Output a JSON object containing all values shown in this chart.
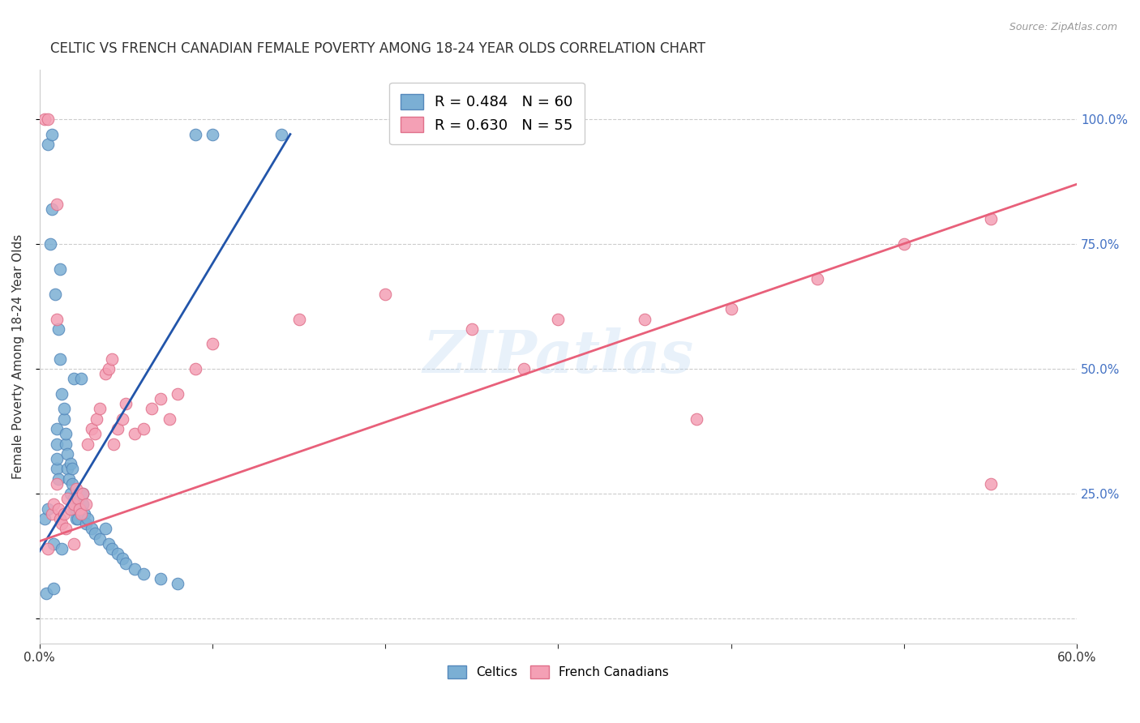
{
  "title": "CELTIC VS FRENCH CANADIAN FEMALE POVERTY AMONG 18-24 YEAR OLDS CORRELATION CHART",
  "source": "Source: ZipAtlas.com",
  "ylabel": "Female Poverty Among 18-24 Year Olds",
  "xlim": [
    0.0,
    0.6
  ],
  "ylim": [
    -0.05,
    1.1
  ],
  "xticks": [
    0.0,
    0.1,
    0.2,
    0.3,
    0.4,
    0.5,
    0.6
  ],
  "xtick_labels": [
    "0.0%",
    "",
    "",
    "",
    "",
    "",
    "60.0%"
  ],
  "yticks": [
    0.0,
    0.25,
    0.5,
    0.75,
    1.0
  ],
  "ytick_labels": [
    "",
    "25.0%",
    "50.0%",
    "75.0%",
    "100.0%"
  ],
  "legend1_r": "0.484",
  "legend1_n": "60",
  "legend2_r": "0.630",
  "legend2_n": "55",
  "celtics_color": "#7bafd4",
  "french_color": "#f4a0b5",
  "celtics_edge": "#5588bb",
  "french_edge": "#e0708a",
  "line_blue": "#2255aa",
  "line_pink": "#e8607a",
  "celtics_x": [
    0.003,
    0.004,
    0.005,
    0.005,
    0.006,
    0.007,
    0.007,
    0.008,
    0.008,
    0.009,
    0.01,
    0.01,
    0.01,
    0.01,
    0.011,
    0.011,
    0.012,
    0.012,
    0.013,
    0.013,
    0.014,
    0.014,
    0.015,
    0.015,
    0.016,
    0.016,
    0.017,
    0.018,
    0.018,
    0.019,
    0.019,
    0.02,
    0.02,
    0.02,
    0.021,
    0.021,
    0.022,
    0.023,
    0.024,
    0.025,
    0.025,
    0.026,
    0.027,
    0.028,
    0.03,
    0.032,
    0.035,
    0.038,
    0.04,
    0.042,
    0.045,
    0.048,
    0.05,
    0.055,
    0.06,
    0.07,
    0.08,
    0.09,
    0.1,
    0.14
  ],
  "celtics_y": [
    0.2,
    0.05,
    0.95,
    0.22,
    0.75,
    0.97,
    0.82,
    0.06,
    0.15,
    0.65,
    0.3,
    0.32,
    0.35,
    0.38,
    0.28,
    0.58,
    0.7,
    0.52,
    0.45,
    0.14,
    0.4,
    0.42,
    0.35,
    0.37,
    0.3,
    0.33,
    0.28,
    0.31,
    0.25,
    0.27,
    0.3,
    0.22,
    0.24,
    0.48,
    0.2,
    0.22,
    0.2,
    0.22,
    0.48,
    0.25,
    0.23,
    0.21,
    0.19,
    0.2,
    0.18,
    0.17,
    0.16,
    0.18,
    0.15,
    0.14,
    0.13,
    0.12,
    0.11,
    0.1,
    0.09,
    0.08,
    0.07,
    0.97,
    0.97,
    0.97
  ],
  "french_x": [
    0.003,
    0.005,
    0.007,
    0.008,
    0.01,
    0.01,
    0.011,
    0.012,
    0.013,
    0.014,
    0.015,
    0.016,
    0.018,
    0.02,
    0.021,
    0.022,
    0.023,
    0.024,
    0.025,
    0.027,
    0.028,
    0.03,
    0.032,
    0.033,
    0.035,
    0.038,
    0.04,
    0.042,
    0.043,
    0.045,
    0.048,
    0.05,
    0.055,
    0.06,
    0.065,
    0.07,
    0.075,
    0.08,
    0.09,
    0.1,
    0.15,
    0.2,
    0.25,
    0.28,
    0.3,
    0.35,
    0.38,
    0.4,
    0.45,
    0.5,
    0.55,
    0.55,
    0.005,
    0.01,
    0.02
  ],
  "french_y": [
    1.0,
    1.0,
    0.21,
    0.23,
    0.83,
    0.27,
    0.22,
    0.2,
    0.19,
    0.21,
    0.18,
    0.24,
    0.22,
    0.23,
    0.26,
    0.24,
    0.22,
    0.21,
    0.25,
    0.23,
    0.35,
    0.38,
    0.37,
    0.4,
    0.42,
    0.49,
    0.5,
    0.52,
    0.35,
    0.38,
    0.4,
    0.43,
    0.37,
    0.38,
    0.42,
    0.44,
    0.4,
    0.45,
    0.5,
    0.55,
    0.6,
    0.65,
    0.58,
    0.5,
    0.6,
    0.6,
    0.4,
    0.62,
    0.68,
    0.75,
    0.8,
    0.27,
    0.14,
    0.6,
    0.15
  ],
  "blue_line_x": [
    0.0,
    0.145
  ],
  "blue_line_y": [
    0.135,
    0.97
  ],
  "pink_line_x": [
    0.0,
    0.6
  ],
  "pink_line_y": [
    0.155,
    0.87
  ]
}
